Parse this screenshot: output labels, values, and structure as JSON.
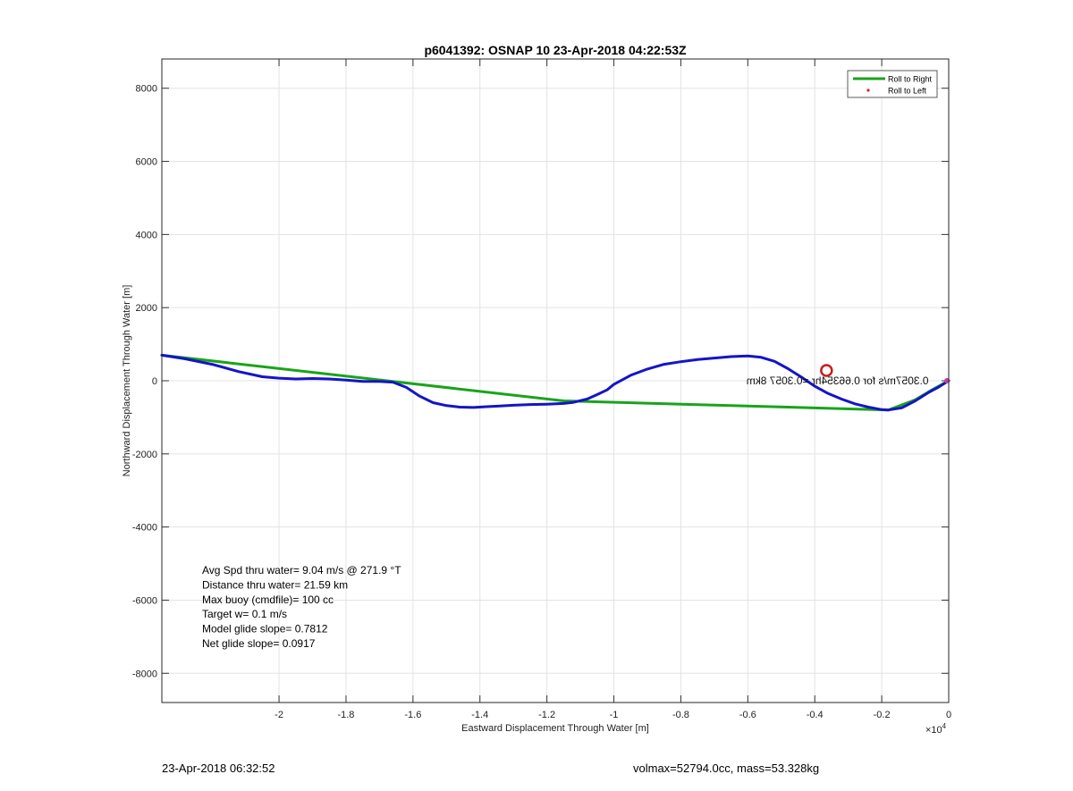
{
  "chart_data": {
    "type": "line",
    "title": "p6041392: OSNAP 10 23-Apr-2018 04:22:53Z",
    "xlabel": "Eastward Displacement Through Water [m]",
    "ylabel": "Northward Displacement Through Water [m]",
    "x_exponent_label": "×10",
    "x_exponent_power": "4",
    "xlim": [
      -2.35,
      0
    ],
    "ylim": [
      -8800,
      8800
    ],
    "x_ticks": [
      -2,
      -1.8,
      -1.6,
      -1.4,
      -1.2,
      -1,
      -0.8,
      -0.6,
      -0.4,
      -0.2,
      0
    ],
    "x_tick_labels": [
      "-2",
      "-1.8",
      "-1.6",
      "-1.4",
      "-1.2",
      "-1",
      "-0.8",
      "-0.6",
      "-0.4",
      "-0.2",
      "0"
    ],
    "y_ticks": [
      8000,
      6000,
      4000,
      2000,
      0,
      -2000,
      -4000,
      -6000,
      -8000
    ],
    "y_tick_labels": [
      "8000",
      "6000",
      "4000",
      "2000",
      "0",
      "-2000",
      "-4000",
      "-6000",
      "-8000"
    ],
    "grid": true,
    "legend_position": "top-right",
    "legend": [
      {
        "label": "Roll to Right",
        "color": "#1aa31a",
        "marker": "line"
      },
      {
        "label": "Roll to Left",
        "color": "#e02020",
        "marker": "dot"
      }
    ],
    "series": [
      {
        "name": "Roll to Right",
        "color": "#1aa31a",
        "x": [
          -2.35,
          -1.15,
          -0.18,
          -0.1,
          -0.05,
          0
        ],
        "y": [
          700,
          -550,
          -800,
          -520,
          -250,
          0
        ]
      },
      {
        "color": "#1414c8",
        "x": [
          -2.35,
          -2.28,
          -2.2,
          -2.12,
          -2.05,
          -2.0,
          -1.95,
          -1.9,
          -1.85,
          -1.8,
          -1.75,
          -1.7,
          -1.66,
          -1.62,
          -1.58,
          -1.54,
          -1.5,
          -1.46,
          -1.42,
          -1.38,
          -1.34,
          -1.3,
          -1.25,
          -1.2,
          -1.15,
          -1.12,
          -1.08,
          -1.05,
          -1.02,
          -1.0,
          -0.95,
          -0.9,
          -0.85,
          -0.8,
          -0.75,
          -0.7,
          -0.65,
          -0.6,
          -0.56,
          -0.52,
          -0.48,
          -0.44,
          -0.4,
          -0.36,
          -0.32,
          -0.28,
          -0.24,
          -0.2,
          -0.18,
          -0.14,
          -0.1,
          -0.06,
          -0.03,
          0
        ],
        "y": [
          700,
          600,
          450,
          250,
          110,
          70,
          50,
          60,
          50,
          20,
          -20,
          -20,
          -40,
          -180,
          -420,
          -600,
          -680,
          -720,
          -730,
          -710,
          -690,
          -670,
          -650,
          -640,
          -620,
          -590,
          -500,
          -380,
          -250,
          -100,
          150,
          320,
          450,
          520,
          580,
          620,
          660,
          680,
          640,
          530,
          330,
          100,
          -150,
          -350,
          -500,
          -630,
          -720,
          -790,
          -800,
          -740,
          -550,
          -320,
          -170,
          0
        ]
      }
    ],
    "markers": [
      {
        "type": "circle",
        "x": -0.365,
        "y": 280,
        "color": "#c81e1e"
      }
    ],
    "annotations": {
      "mirrored_text": "0.3057m/s for 0.66354hr =0.3057 8km",
      "stats": [
        "Avg Spd thru water=  9.04 m/s @ 271.9 °T",
        "Distance thru water= 21.59 km",
        "Max buoy (cmdfile)= 100 cc",
        "Target w= 0.1 m/s",
        "Model glide slope= 0.7812",
        "Net glide slope= 0.0917"
      ]
    }
  },
  "footer": {
    "timestamp": "23-Apr-2018 06:32:52",
    "vol_mass": "volmax=52794.0cc, mass=53.328kg"
  }
}
